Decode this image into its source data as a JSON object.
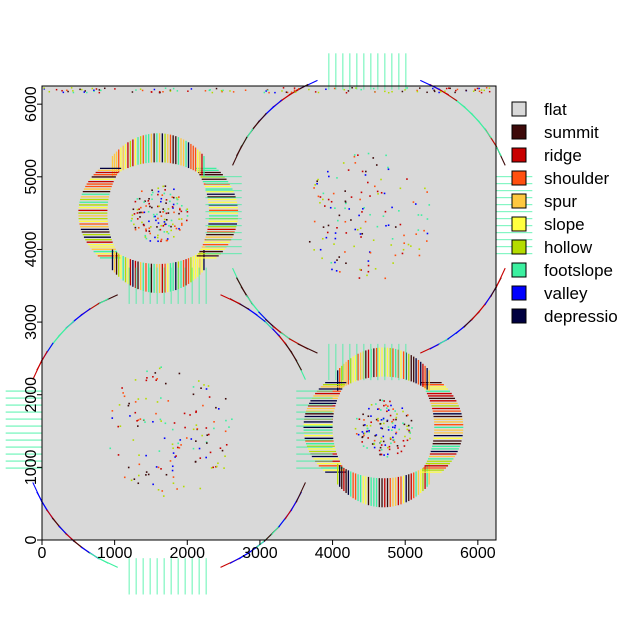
{
  "chart_data": {
    "type": "heatmap",
    "title": "",
    "xlabel": "",
    "ylabel": "",
    "xlim": [
      0,
      6250
    ],
    "ylim": [
      0,
      6250
    ],
    "x_ticks": [
      {
        "value": 0,
        "label": "0"
      },
      {
        "value": 1000,
        "label": "1000"
      },
      {
        "value": 2000,
        "label": "2000"
      },
      {
        "value": 3000,
        "label": "3000"
      },
      {
        "value": 4000,
        "label": "4000"
      },
      {
        "value": 5000,
        "label": "5000"
      },
      {
        "value": 6000,
        "label": "6000"
      }
    ],
    "y_ticks": [
      {
        "value": 0,
        "label": "0"
      },
      {
        "value": 1000,
        "label": "1000"
      },
      {
        "value": 2000,
        "label": "2000"
      },
      {
        "value": 3000,
        "label": "3000"
      },
      {
        "value": 4000,
        "label": "4000"
      },
      {
        "value": 5000,
        "label": "5000"
      },
      {
        "value": 6000,
        "label": "6000"
      }
    ],
    "legend_position": "right",
    "background_class": "flat",
    "classes": [
      {
        "name": "flat",
        "color": "#d9d9d9"
      },
      {
        "name": "summit",
        "color": "#3d0a0a"
      },
      {
        "name": "ridge",
        "color": "#c80000"
      },
      {
        "name": "shoulder",
        "color": "#ff5010"
      },
      {
        "name": "spur",
        "color": "#ffc840"
      },
      {
        "name": "slope",
        "color": "#ffff40"
      },
      {
        "name": "hollow",
        "color": "#b4dc00"
      },
      {
        "name": "footslope",
        "color": "#3cf0a0"
      },
      {
        "name": "valley",
        "color": "#0000ff"
      },
      {
        "name": "depression",
        "color": "#000040"
      }
    ],
    "legend_entries": [
      "flat",
      "summit",
      "ridge",
      "shoulder",
      "spur",
      "slope",
      "hollow",
      "footslope",
      "valley",
      "depressio"
    ],
    "rings": [
      {
        "cx": 1600,
        "cy": 4500,
        "r_inner": 700,
        "r_outer": 1100,
        "style": "hill"
      },
      {
        "cx": 4700,
        "cy": 1550,
        "r_inner": 700,
        "r_outer": 1100,
        "style": "hill"
      },
      {
        "cx": 4500,
        "cy": 4450,
        "r_inner": 1750,
        "r_outer": 2250,
        "style": "basin"
      },
      {
        "cx": 1750,
        "cy": 1500,
        "r_inner": 1750,
        "r_outer": 2250,
        "style": "basin"
      }
    ]
  }
}
